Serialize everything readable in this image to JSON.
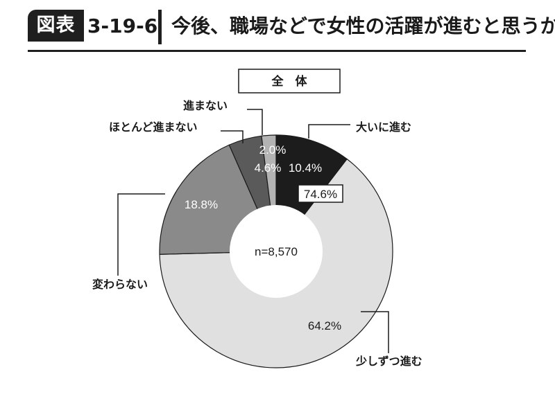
{
  "header": {
    "badge": "図表",
    "figure_number": "3-19-6",
    "title": "今後、職場などで女性の活躍が進むと思うか"
  },
  "chart_data": {
    "type": "pie",
    "subtitle": "全　体",
    "center_label": "n=8,570",
    "highlight_label": "74.6%",
    "slices": [
      {
        "label": "大いに進む",
        "value": 10.4,
        "display": "10.4%",
        "color": "#1c1c1c",
        "text_color": "#ffffff"
      },
      {
        "label": "少しずつ進む",
        "value": 64.2,
        "display": "64.2%",
        "color": "#e0e0e0",
        "text_color": "#1a1a1a"
      },
      {
        "label": "変わらない",
        "value": 18.8,
        "display": "18.8%",
        "color": "#8a8a8a",
        "text_color": "#ffffff"
      },
      {
        "label": "ほとんど進まない",
        "value": 4.6,
        "display": "4.6%",
        "color": "#5a5a5a",
        "text_color": "#ffffff"
      },
      {
        "label": "進まない",
        "value": 2.0,
        "display": "2.0%",
        "color": "#b3b3b3",
        "text_color": "#ffffff"
      }
    ]
  }
}
